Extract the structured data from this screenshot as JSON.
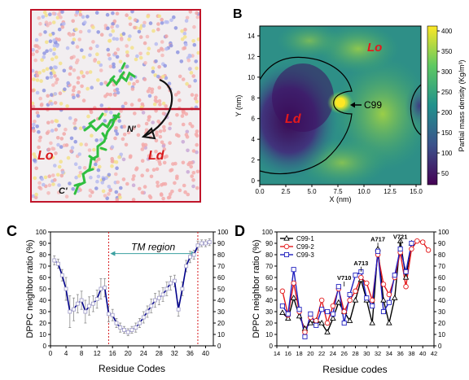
{
  "panel_a": {
    "labels": {
      "lo": "Lo",
      "ld": "Ld",
      "n_term": "N'",
      "c_term": "C'"
    }
  },
  "panel_b": {
    "letter": "B",
    "xlabel": "X (nm)",
    "ylabel": "Y (nm)",
    "colorbar_label": "Partial mass density (Kg/m³)",
    "xticks": [
      "0.0",
      "2.5",
      "5.0",
      "7.5",
      "10.0",
      "12.5",
      "15.0"
    ],
    "yticks": [
      "0",
      "2",
      "4",
      "6",
      "8",
      "10",
      "12",
      "14"
    ],
    "cbar_ticks": [
      "50",
      "100",
      "150",
      "200",
      "250",
      "300",
      "350",
      "400"
    ],
    "region_labels": {
      "lo": "Lo",
      "ld": "Ld"
    },
    "annotation": "C99",
    "colors": {
      "low": "#440154",
      "mid": "#21918c",
      "high": "#fde725",
      "contour": "#000000",
      "label": "#e31a1c"
    }
  },
  "chart_data": [
    {
      "type": "line",
      "panel": "C",
      "title": "",
      "xlabel": "Residue Codes",
      "ylabel": "DPPC neighbor ratio (%)",
      "xlim": [
        0,
        42
      ],
      "ylim": [
        0,
        100
      ],
      "xticks": [
        0,
        4,
        8,
        12,
        16,
        20,
        24,
        28,
        32,
        36,
        40
      ],
      "yticks": [
        0,
        10,
        20,
        30,
        40,
        50,
        60,
        70,
        80,
        90,
        100
      ],
      "region_label": "TM region",
      "region_bounds": [
        15,
        38
      ],
      "series": [
        {
          "color": "#00008b",
          "x": [
            1,
            2,
            3,
            4,
            5,
            6,
            7,
            8,
            9,
            10,
            11,
            12,
            13,
            14,
            15,
            16,
            17,
            18,
            19,
            20,
            21,
            22,
            23,
            24,
            25,
            26,
            27,
            28,
            29,
            30,
            31,
            32,
            33,
            34,
            35,
            36,
            37,
            38,
            39,
            40,
            41
          ],
          "y": [
            75,
            72,
            62,
            50,
            30,
            32,
            37,
            40,
            30,
            35,
            37,
            41,
            50,
            51,
            28,
            27,
            20,
            16,
            14,
            12,
            14,
            16,
            20,
            25,
            30,
            35,
            40,
            42,
            45,
            50,
            55,
            57,
            32,
            50,
            70,
            78,
            80,
            88,
            90,
            90,
            91
          ],
          "err": [
            4,
            4,
            5,
            10,
            14,
            10,
            8,
            8,
            10,
            8,
            7,
            8,
            9,
            8,
            7,
            5,
            4,
            4,
            3,
            3,
            3,
            4,
            4,
            5,
            5,
            6,
            6,
            6,
            6,
            6,
            6,
            5,
            6,
            6,
            5,
            5,
            4,
            4,
            3,
            3,
            3
          ]
        }
      ]
    },
    {
      "type": "line",
      "panel": "D",
      "title": "",
      "xlabel": "Residue codes",
      "ylabel": "DPPC neighbor ratio (%)",
      "xlim": [
        14,
        42
      ],
      "ylim": [
        0,
        100
      ],
      "xticks": [
        14,
        16,
        18,
        20,
        22,
        24,
        26,
        28,
        30,
        32,
        34,
        36,
        38,
        40,
        42
      ],
      "yticks": [
        0,
        10,
        20,
        30,
        40,
        50,
        60,
        70,
        80,
        90,
        100
      ],
      "legend": "top-left",
      "annotations": [
        {
          "text": "V710",
          "x": 26,
          "y": 55
        },
        {
          "text": "A713",
          "x": 29,
          "y": 68
        },
        {
          "text": "A717",
          "x": 32,
          "y": 89
        },
        {
          "text": "V721",
          "x": 36,
          "y": 91
        }
      ],
      "series": [
        {
          "name": "C99-1",
          "color": "#000000",
          "marker": "triangle",
          "x": [
            15,
            16,
            17,
            18,
            19,
            20,
            21,
            22,
            23,
            24,
            25,
            26,
            27,
            28,
            29,
            30,
            31,
            32,
            33,
            34,
            35,
            36,
            37,
            38
          ],
          "y": [
            29,
            24,
            42,
            26,
            15,
            20,
            22,
            20,
            12,
            24,
            38,
            30,
            22,
            40,
            58,
            40,
            20,
            85,
            40,
            20,
            42,
            92,
            60,
            90
          ]
        },
        {
          "name": "C99-2",
          "color": "#e31a1c",
          "marker": "circle",
          "x": [
            15,
            16,
            17,
            18,
            19,
            20,
            21,
            22,
            23,
            24,
            25,
            26,
            27,
            28,
            29,
            30,
            31,
            32,
            33,
            34,
            35,
            36,
            37,
            38,
            39,
            40,
            41
          ],
          "y": [
            48,
            27,
            55,
            30,
            12,
            25,
            22,
            40,
            20,
            35,
            50,
            30,
            40,
            48,
            60,
            55,
            40,
            80,
            54,
            45,
            60,
            82,
            52,
            85,
            92,
            91,
            84
          ]
        },
        {
          "name": "C99-3",
          "color": "#1f1fbf",
          "marker": "square",
          "x": [
            15,
            16,
            17,
            18,
            19,
            20,
            21,
            22,
            23,
            24,
            25,
            26,
            27,
            28,
            29,
            30,
            31,
            32,
            33,
            34,
            35,
            36,
            37,
            38
          ],
          "y": [
            35,
            28,
            67,
            32,
            8,
            28,
            18,
            32,
            30,
            28,
            52,
            20,
            45,
            62,
            65,
            42,
            35,
            83,
            30,
            38,
            62,
            85,
            65,
            90
          ]
        }
      ]
    }
  ]
}
